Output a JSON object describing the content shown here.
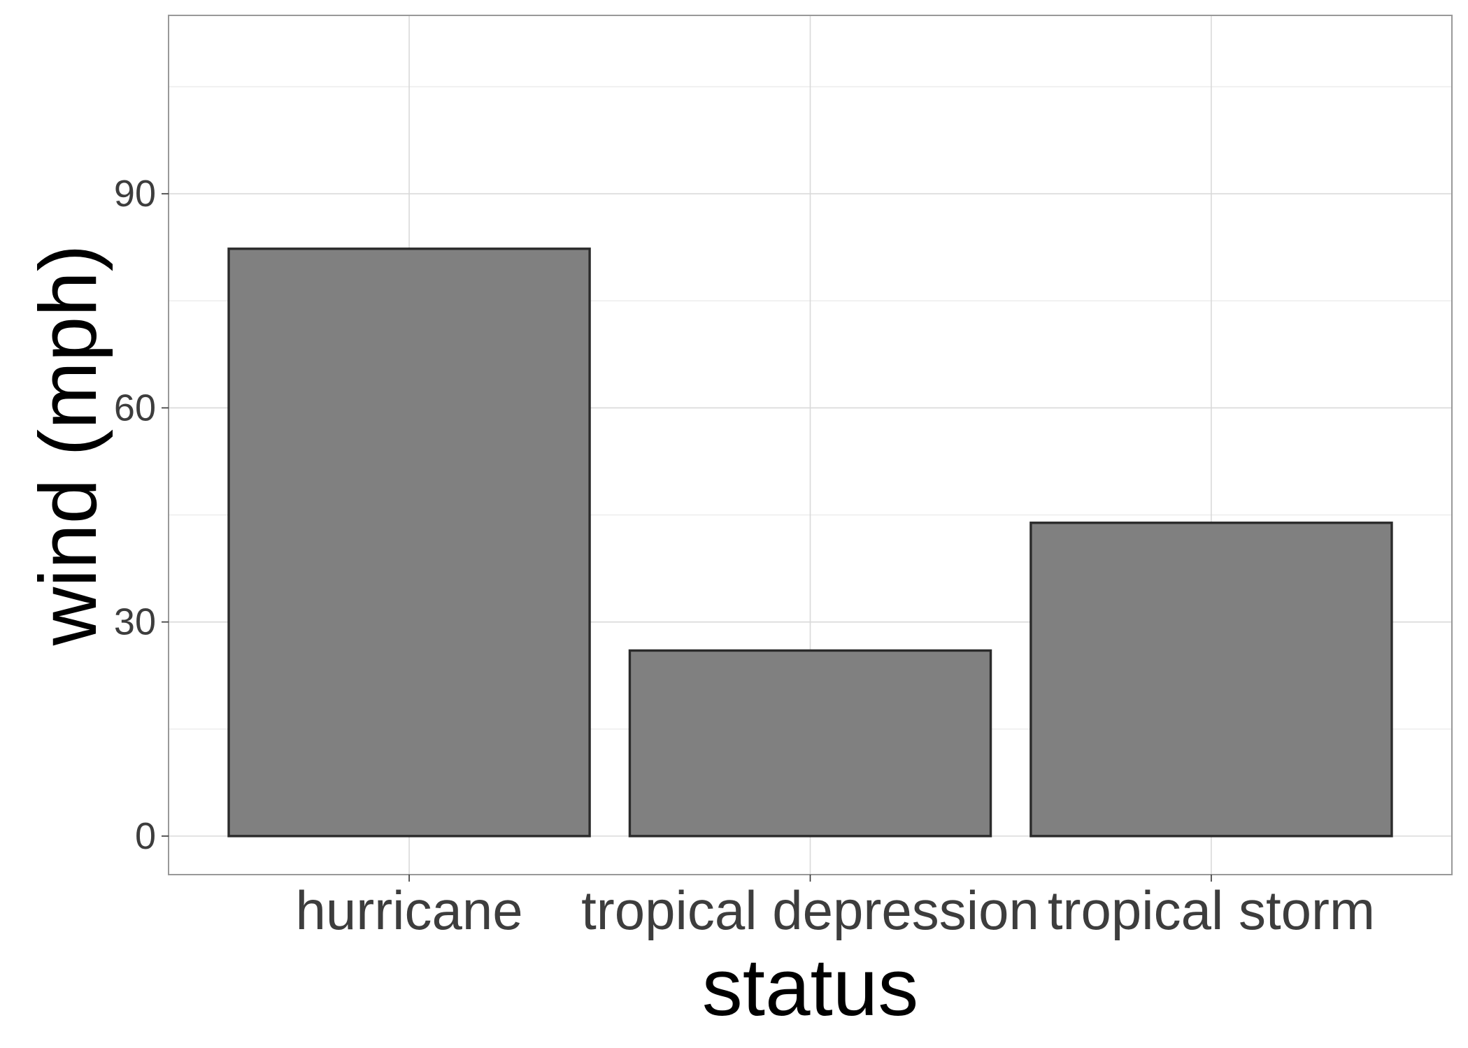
{
  "chart_data": {
    "type": "bar",
    "categories": [
      "hurricane",
      "tropical depression",
      "tropical storm"
    ],
    "values": [
      82.3,
      26,
      43.9
    ],
    "xlabel": "status",
    "ylabel": "wind (mph)",
    "ylim": [
      -5.4,
      115
    ],
    "yticks": [
      0,
      30,
      60,
      90
    ],
    "ytick_labels": [
      "0",
      "30",
      "60",
      "90"
    ],
    "grid": true,
    "legend": "none",
    "colors": {
      "bar_fill": "#808080",
      "bar_stroke": "#2b2b2b",
      "panel_border": "#999999",
      "grid_major": "#d9d9d9",
      "grid_minor": "#ebebeb",
      "tick_text": "#3d3d3d",
      "title_text": "#000000"
    }
  }
}
